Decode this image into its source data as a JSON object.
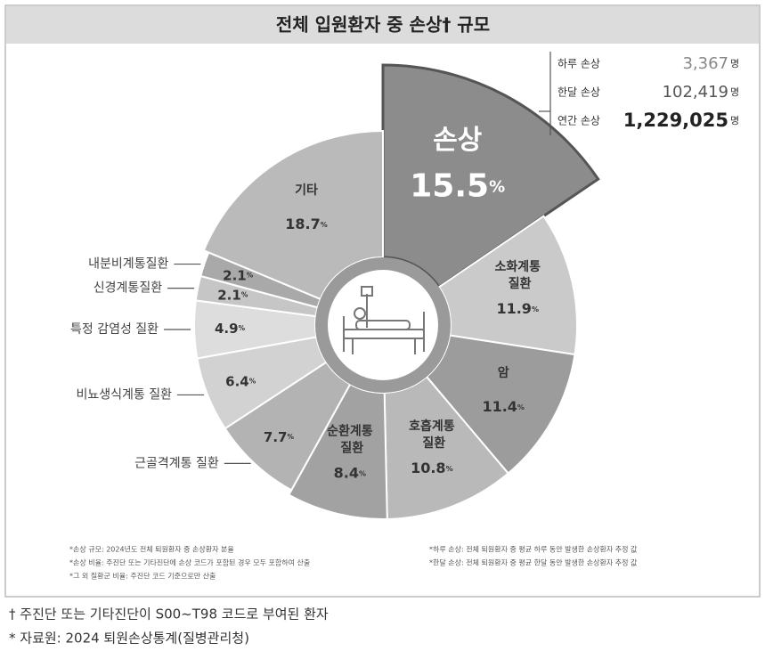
{
  "chart_data": {
    "type": "pie",
    "title": "전체 입원환자 중 손상† 규모",
    "categories": [
      "손상",
      "소화계통 질환",
      "암",
      "호흡계통 질환",
      "순환계통 질환",
      "근골격계통 질환",
      "비뇨생식계통 질환",
      "특정 감염성 질환",
      "신경계통질환",
      "내분비계통질환",
      "기타"
    ],
    "values": [
      15.5,
      11.9,
      11.4,
      10.8,
      8.4,
      7.7,
      6.4,
      4.9,
      2.1,
      2.1,
      18.7
    ],
    "value_labels": [
      "15.5%",
      "11.9%",
      "11.4%",
      "10.8%",
      "8.4%",
      "7.7%",
      "6.4%",
      "4.9%",
      "2.1%",
      "2.1%",
      "18.7%"
    ],
    "colors": [
      "#8c8c8c",
      "#cacaca",
      "#9c9c9c",
      "#b9b9b9",
      "#a2a2a2",
      "#b3b3b3",
      "#d2d2d2",
      "#dddddd",
      "#c6c6c6",
      "#a9a9a9",
      "#bababa"
    ]
  },
  "stats": [
    {
      "label": "하루 손상",
      "value": "3,367",
      "unit": "명"
    },
    {
      "label": "한달 손상",
      "value": "102,419",
      "unit": "명"
    },
    {
      "label": "연간 손상",
      "value": "1,229,025",
      "unit": "명"
    }
  ],
  "footnotes": {
    "left": [
      "*손상 규모: 2024년도 전체 퇴원환자 중 손상환자 분율",
      "*손상 비율: 주진단 또는 기타진단에 손상 코드가 포함된 경우 모두 포함하여 산출",
      "*그 외 질환군 비율: 주진단 코드 기준으로만 산출"
    ],
    "right": [
      "*하루 손상: 전체 퇴원환자 중 평균 하루 동안 발생한 손상환자 추정 값",
      "*한달 손상: 전체 퇴원환자 중 평균 한달 동안 발생한 손상환자 추정 값"
    ]
  },
  "notes": [
    "† 주진단 또는 기타진단이 S00~T98 코드로 부여된 환자",
    "* 자료원: 2024 퇴원손상통계(질병관리청)"
  ]
}
